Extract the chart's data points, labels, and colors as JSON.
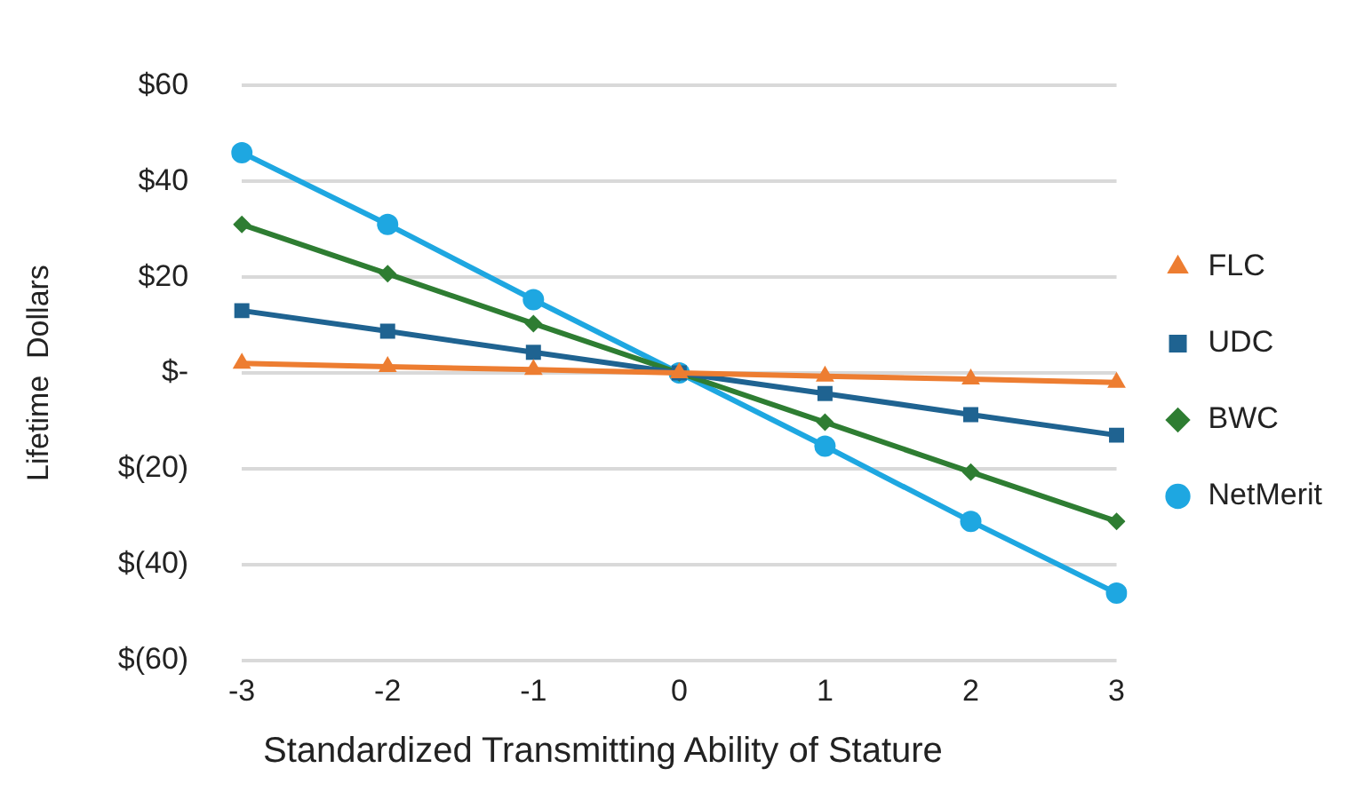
{
  "chart_data": {
    "type": "line",
    "xlabel": "Standardized Transmitting Ability of Stature",
    "ylabel": "Lifetime  Dollars",
    "categories": [
      "-3",
      "-2",
      "-1",
      "0",
      "1",
      "2",
      "3"
    ],
    "series": [
      {
        "name": "FLC",
        "color": "#ed7d31",
        "marker": "triangle",
        "values": [
          2,
          1.3,
          0.7,
          0,
          -0.7,
          -1.3,
          -2
        ]
      },
      {
        "name": "UDC",
        "color": "#1f6391",
        "marker": "square",
        "values": [
          13,
          8.7,
          4.3,
          0,
          -4.3,
          -8.7,
          -13
        ]
      },
      {
        "name": "BWC",
        "color": "#2e7d32",
        "marker": "diamond",
        "values": [
          31,
          20.7,
          10.3,
          0,
          -10.3,
          -20.7,
          -31
        ]
      },
      {
        "name": "NetMerit",
        "color": "#1ea7e1",
        "marker": "circle",
        "values": [
          46,
          31,
          15.3,
          0,
          -15.3,
          -31,
          -46
        ]
      }
    ],
    "ylim": [
      -60,
      60
    ],
    "yticks": [
      {
        "value": -60,
        "label": "$(60)"
      },
      {
        "value": -40,
        "label": "$(40)"
      },
      {
        "value": -20,
        "label": "$(20)"
      },
      {
        "value": 0,
        "label": "$-"
      },
      {
        "value": 20,
        "label": "$20"
      },
      {
        "value": 40,
        "label": "$40"
      },
      {
        "value": 60,
        "label": "$60"
      }
    ],
    "grid": "y",
    "legend": "right",
    "line_style": "solid"
  }
}
